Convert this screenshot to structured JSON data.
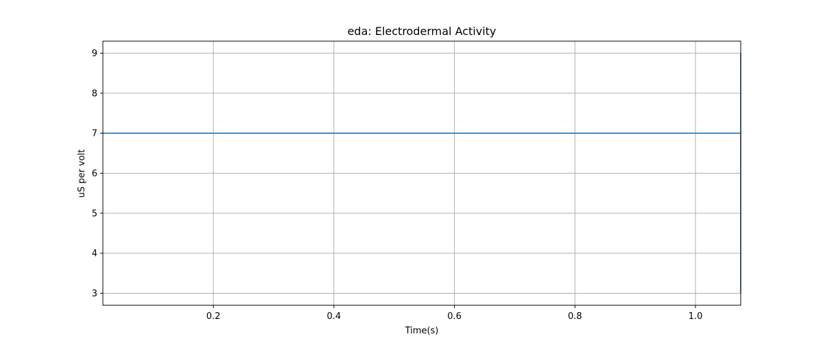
{
  "chart_data": {
    "type": "line",
    "title": "eda: Electrodermal Activity",
    "xlabel": "Time(s)",
    "ylabel": "uS per volt",
    "xlim": [
      0.0167,
      1.075
    ],
    "ylim": [
      2.7,
      9.3
    ],
    "xticks": [
      0.2,
      0.4,
      0.6,
      0.8,
      1.0
    ],
    "xtick_labels": [
      "0.2",
      "0.4",
      "0.6",
      "0.8",
      "1.0"
    ],
    "yticks": [
      3,
      4,
      5,
      6,
      7,
      8,
      9
    ],
    "ytick_labels": [
      "3",
      "4",
      "5",
      "6",
      "7",
      "8",
      "9"
    ],
    "grid": true,
    "series": [
      {
        "color": "#1f77b4",
        "x": [
          0.0167,
          1.075,
          1.075,
          1.075,
          1.075
        ],
        "y": [
          7,
          7,
          9,
          3,
          7
        ]
      }
    ]
  }
}
